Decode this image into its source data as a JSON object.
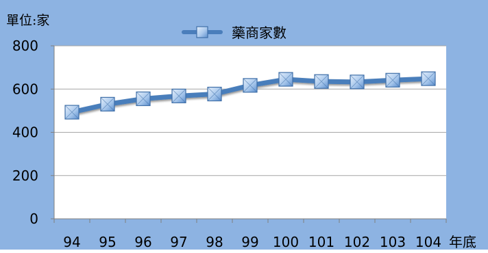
{
  "chart_data": {
    "type": "line",
    "y_unit_label": "單位:家",
    "x_unit_label": "年底",
    "categories": [
      "94",
      "95",
      "96",
      "97",
      "98",
      "99",
      "100",
      "101",
      "102",
      "103",
      "104"
    ],
    "series": [
      {
        "name": "藥商家數",
        "values": [
          493,
          530,
          555,
          568,
          577,
          617,
          645,
          635,
          633,
          641,
          648
        ]
      }
    ],
    "ylim": [
      0,
      800
    ],
    "yticks": [
      0,
      200,
      400,
      600,
      800
    ],
    "grid": true,
    "legend": "top-center",
    "colors": {
      "background": "#8db3e2",
      "plot_area": "#ffffff",
      "line": "#4a7ebb",
      "marker_fill": "#b6d1ef",
      "marker_stroke": "#3f6fa8",
      "gridline": "#a6a6a6"
    }
  }
}
